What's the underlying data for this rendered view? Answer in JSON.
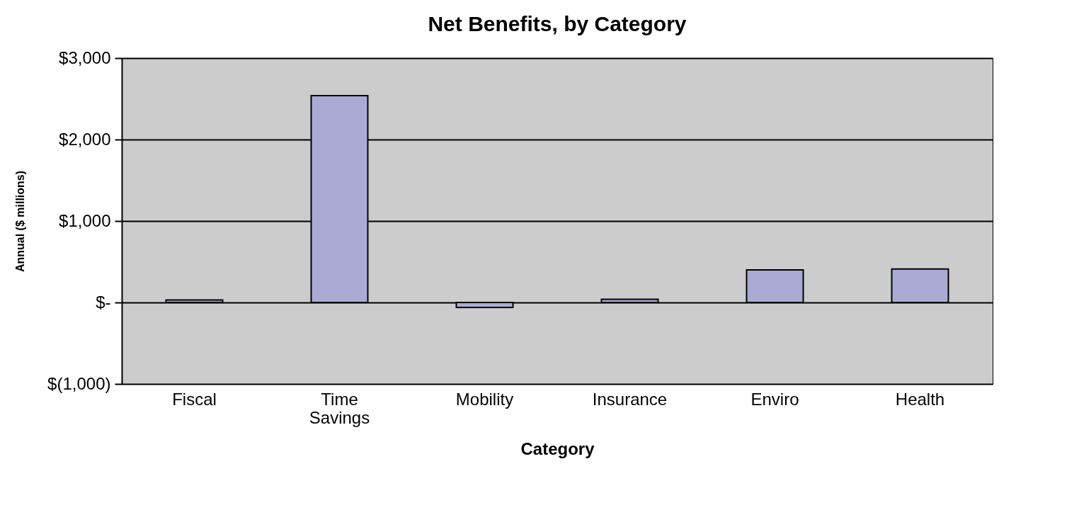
{
  "chart_data": {
    "type": "bar",
    "title": "Net Benefits, by Category",
    "xlabel": "Category",
    "ylabel": "Annual ($ millions)",
    "categories": [
      "Fiscal",
      "Time Savings",
      "Mobility",
      "Insurance",
      "Enviro",
      "Health"
    ],
    "values": [
      30,
      2540,
      -60,
      40,
      400,
      410
    ],
    "color": "#aaaad5",
    "ylim": [
      -1000,
      3000
    ],
    "yticks": [
      {
        "value": -1000,
        "label": "$(1,000)"
      },
      {
        "value": 0,
        "label": "$-"
      },
      {
        "value": 1000,
        "label": "$1,000"
      },
      {
        "value": 2000,
        "label": "$2,000"
      },
      {
        "value": 3000,
        "label": "$3,000"
      }
    ],
    "grid": "y"
  }
}
